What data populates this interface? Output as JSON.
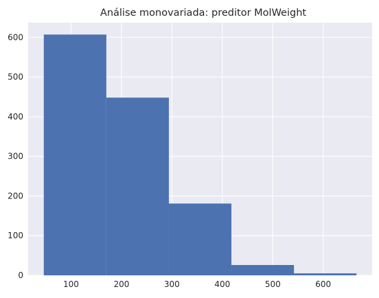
{
  "chart_data": {
    "type": "bar",
    "title": "Análise monovariada: preditor MolWeight",
    "xlabel": "",
    "ylabel": "",
    "bins": [
      {
        "x0": 46,
        "x1": 170,
        "count": 607
      },
      {
        "x0": 170,
        "x1": 294,
        "count": 448
      },
      {
        "x0": 294,
        "x1": 418,
        "count": 181
      },
      {
        "x0": 418,
        "x1": 542,
        "count": 26
      },
      {
        "x0": 542,
        "x1": 666,
        "count": 5
      }
    ],
    "xlim": [
      15,
      697
    ],
    "ylim": [
      0,
      637
    ],
    "xticks": [
      100,
      200,
      300,
      400,
      500,
      600
    ],
    "yticks": [
      0,
      100,
      200,
      300,
      400,
      500,
      600
    ],
    "grid": true,
    "colors": {
      "bar": "#4c72b0",
      "background": "#eaeaf2",
      "grid": "#ffffff",
      "text": "#262626"
    }
  }
}
